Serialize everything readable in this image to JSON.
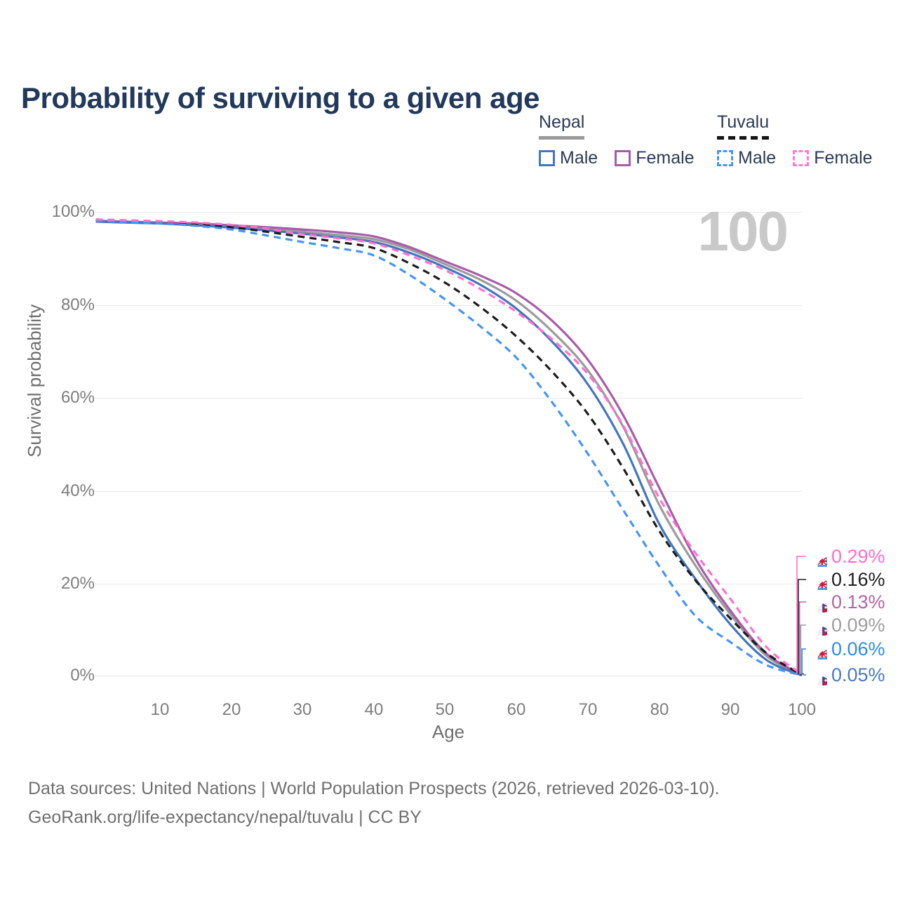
{
  "title": "Probability of surviving to a given age",
  "watermark": "100",
  "legend": {
    "groups": [
      {
        "label": "Nepal",
        "style": "solid",
        "items": [
          {
            "label": "Male"
          },
          {
            "label": "Female"
          }
        ]
      },
      {
        "label": "Tuvalu",
        "style": "dashed",
        "items": [
          {
            "label": "Male"
          },
          {
            "label": "Female"
          }
        ]
      }
    ]
  },
  "chart_data": {
    "type": "line",
    "title": "Probability of surviving to a given age",
    "xlabel": "Age",
    "ylabel": "Survival probability",
    "xlim": [
      1,
      100
    ],
    "ylim": [
      0,
      100
    ],
    "grid": true,
    "legend_position": "top-right",
    "x_ticks": [
      "10",
      "20",
      "30",
      "40",
      "50",
      "60",
      "70",
      "80",
      "90",
      "100"
    ],
    "y_ticks": [
      "100%",
      "80%",
      "60%",
      "40%",
      "20%",
      "0%"
    ],
    "x": [
      1,
      5,
      10,
      15,
      20,
      25,
      30,
      35,
      40,
      45,
      50,
      55,
      60,
      65,
      70,
      75,
      80,
      85,
      90,
      95,
      100
    ],
    "series": [
      {
        "name": "Nepal",
        "sex": "All",
        "country": "Nepal",
        "color": "#9b9b9b",
        "dashed": false,
        "end_value_pct": 0.09,
        "values": [
          98.0,
          97.8,
          97.6,
          97.3,
          96.9,
          96.4,
          95.7,
          95.0,
          94.1,
          91.9,
          88.7,
          85.3,
          80.8,
          74.2,
          65.8,
          53.5,
          36.8,
          23.9,
          13.2,
          4.3,
          0.09
        ]
      },
      {
        "name": "Nepal Female",
        "sex": "Female",
        "country": "Nepal",
        "color": "#a85ca8",
        "dashed": false,
        "end_value_pct": 0.13,
        "values": [
          98.1,
          97.9,
          97.7,
          97.5,
          97.1,
          96.7,
          96.2,
          95.6,
          94.7,
          92.4,
          89.3,
          86.2,
          82.4,
          76.5,
          68.1,
          56.0,
          40.5,
          25.4,
          14.0,
          4.8,
          0.13
        ]
      },
      {
        "name": "Nepal Male",
        "sex": "Male",
        "country": "Nepal",
        "color": "#4276bd",
        "dashed": false,
        "end_value_pct": 0.05,
        "values": [
          97.9,
          97.7,
          97.5,
          97.1,
          96.6,
          96.0,
          95.3,
          94.5,
          93.5,
          91.2,
          88.0,
          84.2,
          79.1,
          72.0,
          62.8,
          49.8,
          32.7,
          21.0,
          11.0,
          3.4,
          0.05
        ]
      },
      {
        "name": "Tuvalu",
        "sex": "All",
        "country": "Tuvalu",
        "color": "#1c1c1c",
        "dashed": true,
        "end_value_pct": 0.16,
        "values": [
          98.2,
          98.0,
          97.7,
          97.3,
          96.7,
          95.7,
          94.6,
          93.5,
          92.2,
          88.9,
          84.7,
          79.4,
          73.1,
          65.5,
          56.4,
          44.6,
          31.2,
          20.7,
          12.3,
          4.9,
          0.16
        ]
      },
      {
        "name": "Tuvalu Male",
        "sex": "Male",
        "country": "Tuvalu",
        "color": "#4495f5",
        "dashed": true,
        "end_value_pct": 0.06,
        "values": [
          98.1,
          97.8,
          97.5,
          97.0,
          96.2,
          94.9,
          93.5,
          92.2,
          90.6,
          86.4,
          81.1,
          75.2,
          68.5,
          58.9,
          47.8,
          35.6,
          23.6,
          13.0,
          7.2,
          2.3,
          0.06
        ]
      },
      {
        "name": "Tuvalu Female",
        "sex": "Female",
        "country": "Tuvalu",
        "color": "#ff70cf",
        "dashed": true,
        "end_value_pct": 0.29,
        "values": [
          98.4,
          98.2,
          98.0,
          97.7,
          97.2,
          96.4,
          95.2,
          94.3,
          93.2,
          90.6,
          87.4,
          83.3,
          78.4,
          72.5,
          65.0,
          53.8,
          38.3,
          26.6,
          16.5,
          6.2,
          0.29
        ]
      }
    ],
    "end_labels": [
      {
        "text": "0.29%",
        "color": "#ff6ec7",
        "flag": "tuvalu"
      },
      {
        "text": "0.16%",
        "color": "#1f1f1f",
        "flag": "tuvalu"
      },
      {
        "text": "0.13%",
        "color": "#b465a5",
        "flag": "nepal"
      },
      {
        "text": "0.09%",
        "color": "#9e9e9e",
        "flag": "nepal"
      },
      {
        "text": "0.06%",
        "color": "#2e8ceb",
        "flag": "tuvalu"
      },
      {
        "text": "0.05%",
        "color": "#4a7ac0",
        "flag": "nepal"
      }
    ]
  },
  "footer": {
    "line1": "Data sources: United Nations | World Population Prospects (2026, retrieved 2026-03-10).",
    "line2": "GeoRank.org/life-expectancy/nepal/tuvalu | CC BY"
  }
}
